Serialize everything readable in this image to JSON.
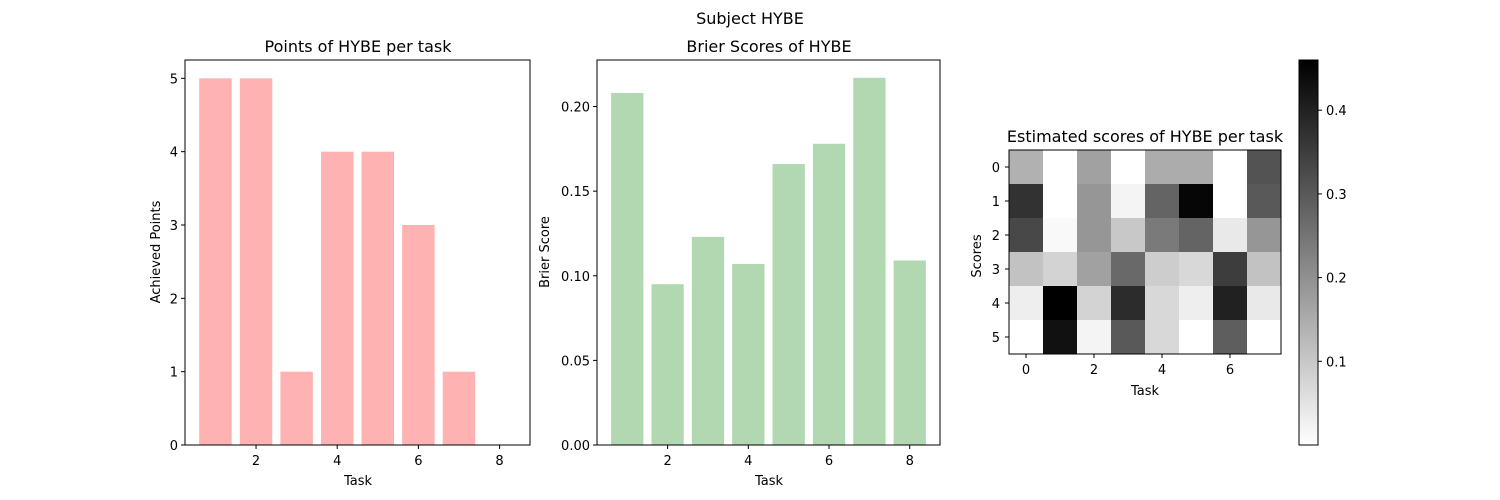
{
  "figure": {
    "suptitle": "Subject HYBE"
  },
  "chart_data": [
    {
      "type": "bar",
      "title": "Points of HYBE per task",
      "xlabel": "Task",
      "ylabel": "Achieved Points",
      "x": [
        1,
        2,
        3,
        4,
        5,
        6,
        7,
        8
      ],
      "values": [
        5,
        5,
        1,
        4,
        4,
        3,
        1,
        0
      ],
      "xlim": [
        0.25,
        8.75
      ],
      "ylim": [
        0,
        5.25
      ],
      "xticks": [
        2,
        4,
        6,
        8
      ],
      "yticks": [
        0,
        1,
        2,
        3,
        4,
        5
      ],
      "color": "#ffb2b2",
      "grid": false
    },
    {
      "type": "bar",
      "title": "Brier Scores of HYBE",
      "xlabel": "Task",
      "ylabel": "Brier Score",
      "x": [
        1,
        2,
        3,
        4,
        5,
        6,
        7,
        8
      ],
      "values": [
        0.208,
        0.095,
        0.123,
        0.107,
        0.166,
        0.178,
        0.217,
        0.109
      ],
      "xlim": [
        0.25,
        8.75
      ],
      "ylim": [
        0,
        0.2275
      ],
      "xticks": [
        2,
        4,
        6,
        8
      ],
      "yticks": [
        0.0,
        0.05,
        0.1,
        0.15,
        0.2
      ],
      "ytick_labels": [
        "0.00",
        "0.05",
        "0.10",
        "0.15",
        "0.20"
      ],
      "color": "#b2d8b2",
      "grid": false
    },
    {
      "type": "heatmap",
      "title": "Estimated scores of HYBE per task",
      "xlabel": "Task",
      "ylabel": "Scores",
      "xticks": [
        0,
        2,
        4,
        6
      ],
      "yticks": [
        0,
        1,
        2,
        3,
        4,
        5
      ],
      "rows": 6,
      "cols": 8,
      "cmap": "Greys",
      "values": [
        [
          0.14,
          0.0,
          0.17,
          0.0,
          0.15,
          0.15,
          0.0,
          0.31
        ],
        [
          0.37,
          0.0,
          0.19,
          0.02,
          0.28,
          0.45,
          0.0,
          0.3
        ],
        [
          0.33,
          0.01,
          0.19,
          0.1,
          0.24,
          0.28,
          0.04,
          0.19
        ],
        [
          0.11,
          0.08,
          0.17,
          0.27,
          0.09,
          0.07,
          0.35,
          0.11
        ],
        [
          0.03,
          0.46,
          0.08,
          0.38,
          0.07,
          0.03,
          0.4,
          0.04
        ],
        [
          0.0,
          0.43,
          0.02,
          0.3,
          0.07,
          0.0,
          0.29,
          0.0
        ]
      ],
      "colorbar": {
        "vmin": 0.0,
        "vmax": 0.46,
        "ticks": [
          0.1,
          0.2,
          0.3,
          0.4
        ]
      }
    }
  ]
}
